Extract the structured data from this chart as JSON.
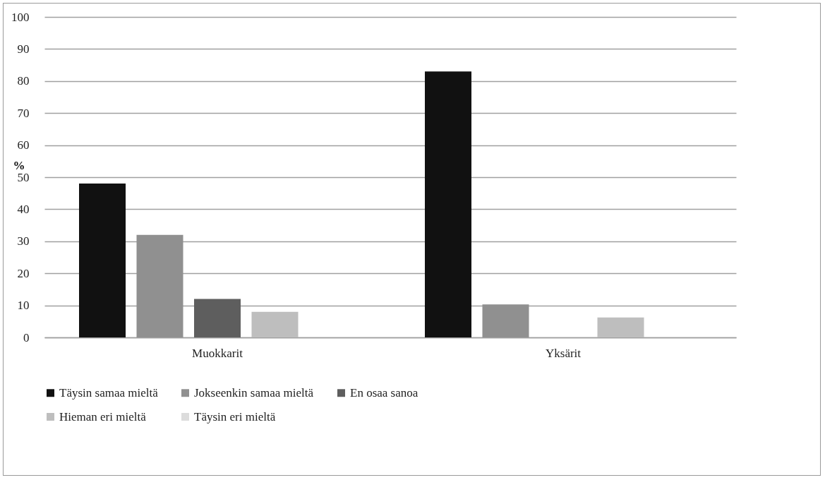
{
  "chart_data": {
    "type": "bar",
    "ylabel": "%",
    "categories": [
      "Muokkarit",
      "Yksärit"
    ],
    "series": [
      {
        "name": "Täysin samaa mieltä",
        "color": "#111111",
        "values": [
          48,
          83
        ]
      },
      {
        "name": "Jokseenkin samaa mieltä",
        "color": "#909090",
        "values": [
          32,
          10.3
        ]
      },
      {
        "name": "En osaa sanoa",
        "color": "#5e5e5e",
        "values": [
          12,
          0
        ]
      },
      {
        "name": "Hieman eri mieltä",
        "color": "#bebebe",
        "values": [
          8,
          6.2
        ]
      },
      {
        "name": "Täysin eri mieltä",
        "color": "#dcdcdc",
        "values": [
          0,
          0
        ]
      }
    ],
    "ylim": [
      0,
      100
    ],
    "yticks": [
      0,
      10,
      20,
      30,
      40,
      50,
      60,
      70,
      80,
      90,
      100
    ],
    "grid": "y",
    "legend": "bottom"
  }
}
